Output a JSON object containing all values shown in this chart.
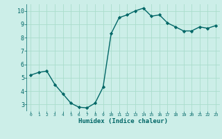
{
  "x": [
    0,
    1,
    2,
    3,
    4,
    5,
    6,
    7,
    8,
    9,
    10,
    11,
    12,
    13,
    14,
    15,
    16,
    17,
    18,
    19,
    20,
    21,
    22,
    23
  ],
  "y": [
    5.2,
    5.4,
    5.5,
    4.5,
    3.8,
    3.1,
    2.8,
    2.75,
    3.1,
    4.3,
    8.3,
    9.5,
    9.7,
    10.0,
    10.2,
    9.6,
    9.7,
    9.1,
    8.8,
    8.5,
    8.5,
    8.8,
    8.7,
    8.9
  ],
  "xlabel": "Humidex (Indice chaleur)",
  "ylim": [
    2.5,
    10.5
  ],
  "xlim": [
    -0.5,
    23.5
  ],
  "yticks": [
    3,
    4,
    5,
    6,
    7,
    8,
    9,
    10
  ],
  "xticks": [
    0,
    1,
    2,
    3,
    4,
    5,
    6,
    7,
    8,
    9,
    10,
    11,
    12,
    13,
    14,
    15,
    16,
    17,
    18,
    19,
    20,
    21,
    22,
    23
  ],
  "line_color": "#006666",
  "marker_color": "#006666",
  "bg_color": "#cceee8",
  "grid_color": "#aaddcc"
}
